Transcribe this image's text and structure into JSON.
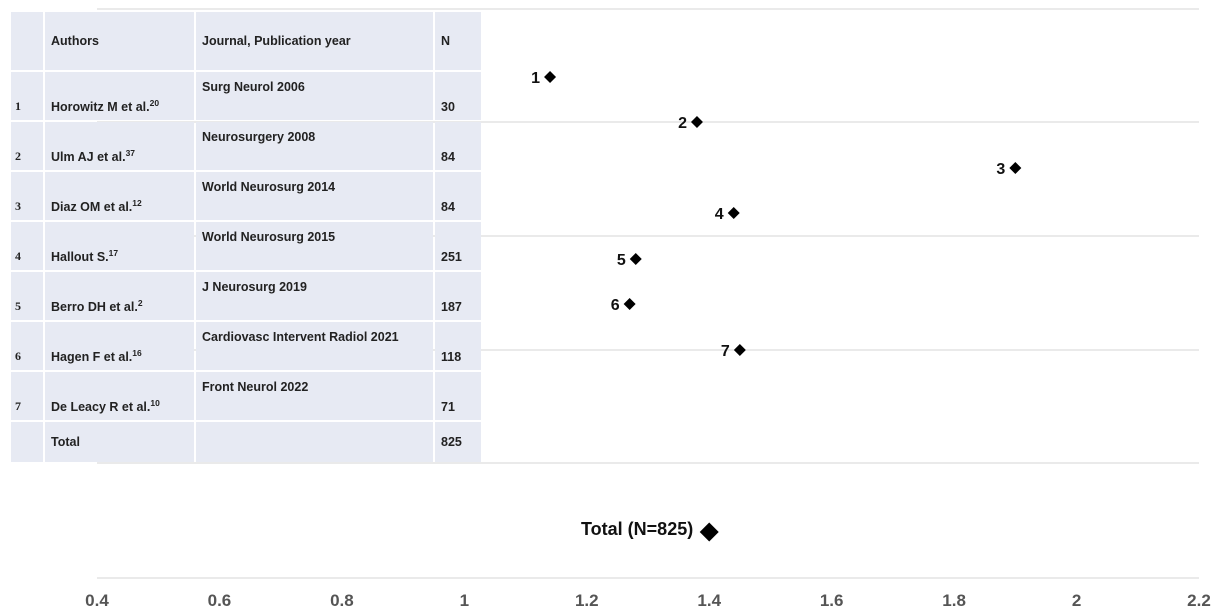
{
  "table": {
    "headers": {
      "index": "",
      "authors": "Authors",
      "journal": "Journal, Publication year",
      "n": "N"
    },
    "rows": [
      {
        "index": "1",
        "author": "Horowitz M et al.",
        "ref": "20",
        "journal": "Surg Neurol 2006",
        "n": "30"
      },
      {
        "index": "2",
        "author": "Ulm AJ et al.",
        "ref": "37",
        "journal": "Neurosurgery  2008",
        "n": "84"
      },
      {
        "index": "3",
        "author": "Diaz OM et al.",
        "ref": "12",
        "journal": "World Neurosurg  2014",
        "n": "84"
      },
      {
        "index": "4",
        "author": "Hallout S.",
        "ref": "17",
        "journal": "World Neurosurg  2015",
        "n": "251"
      },
      {
        "index": "5",
        "author": "Berro DH et al.",
        "ref": "2",
        "journal": "J Neurosurg 2019",
        "n": "187"
      },
      {
        "index": "6",
        "author": "Hagen F et al.",
        "ref": "16",
        "journal": "Cardiovasc Intervent Radiol 2021",
        "n": "118"
      },
      {
        "index": "7",
        "author": "De Leacy R et al.",
        "ref": "10",
        "journal": "Front Neurol 2022",
        "n": "71"
      }
    ],
    "total": {
      "label": "Total",
      "journal": "",
      "n": "825"
    }
  },
  "chart_data": {
    "type": "scatter",
    "title": "",
    "xlabel": "",
    "ylabel": "",
    "xlim": [
      0.4,
      2.2
    ],
    "x_ticks": [
      "0.4",
      "0.6",
      "0.8",
      "1",
      "1.2",
      "1.4",
      "1.6",
      "1.8",
      "2",
      "2.2"
    ],
    "grid": "horizontal",
    "marker_color": "#000000",
    "points": [
      {
        "label": "1",
        "x": 1.14
      },
      {
        "label": "2",
        "x": 1.38
      },
      {
        "label": "3",
        "x": 1.9
      },
      {
        "label": "4",
        "x": 1.44
      },
      {
        "label": "5",
        "x": 1.28
      },
      {
        "label": "6",
        "x": 1.27
      },
      {
        "label": "7",
        "x": 1.45
      }
    ],
    "total": {
      "label": "Total (N=825)",
      "x": 1.4
    }
  }
}
